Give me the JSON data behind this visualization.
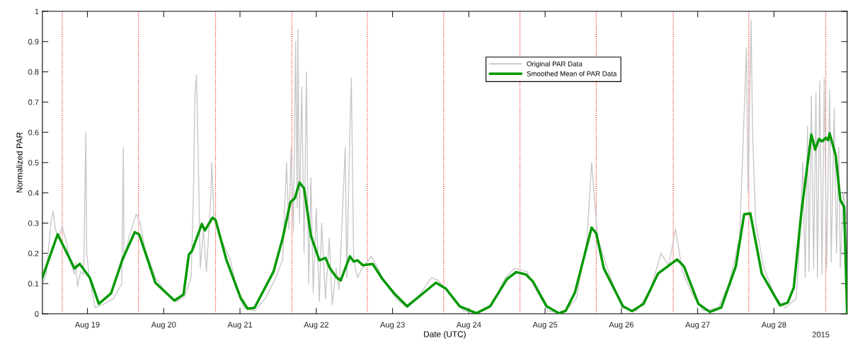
{
  "chart_data": {
    "type": "line",
    "xlabel": "Date (UTC)",
    "ylabel": "Normalized PAR",
    "annotations": [
      "2015"
    ],
    "xlim": [
      "2015-08-18T09:50",
      "2015-08-28T23:02"
    ],
    "xticks": [
      {
        "value": "2015-08-19",
        "label": "Aug 19"
      },
      {
        "value": "2015-08-20",
        "label": "Aug 20"
      },
      {
        "value": "2015-08-21",
        "label": "Aug 21"
      },
      {
        "value": "2015-08-22",
        "label": "Aug 22"
      },
      {
        "value": "2015-08-23",
        "label": "Aug 23"
      },
      {
        "value": "2015-08-24",
        "label": "Aug 24"
      },
      {
        "value": "2015-08-25",
        "label": "Aug 25"
      },
      {
        "value": "2015-08-26",
        "label": "Aug 26"
      },
      {
        "value": "2015-08-27",
        "label": "Aug 27"
      },
      {
        "value": "2015-08-28",
        "label": "Aug 28"
      }
    ],
    "ylim": [
      0,
      1
    ],
    "yticks": [
      0,
      0.1,
      0.2,
      0.3,
      0.4,
      0.5,
      0.6,
      0.7,
      0.8,
      0.9,
      1
    ],
    "grid": false,
    "legend": "top",
    "marker": "none",
    "line_style": "solid",
    "ref_lines": [
      {
        "axis": "x",
        "value": "2015-08-18T16:05",
        "color": "#ff0000",
        "line_style": "dotted"
      },
      {
        "axis": "x",
        "value": "2015-08-19T16:05",
        "color": "#ff0000",
        "line_style": "dotted"
      },
      {
        "axis": "x",
        "value": "2015-08-20T16:19",
        "color": "#ff0000",
        "line_style": "dotted"
      },
      {
        "axis": "x",
        "value": "2015-08-21T16:19",
        "color": "#ff0000",
        "line_style": "dotted"
      },
      {
        "axis": "x",
        "value": "2015-08-22T16:05",
        "color": "#ff0000",
        "line_style": "dotted"
      },
      {
        "axis": "x",
        "value": "2015-08-23T16:05",
        "color": "#ff0000",
        "line_style": "dotted"
      },
      {
        "axis": "x",
        "value": "2015-08-24T16:05",
        "color": "#ff0000",
        "line_style": "dotted"
      },
      {
        "axis": "x",
        "value": "2015-08-25T16:05",
        "color": "#ff0000",
        "line_style": "dotted"
      },
      {
        "axis": "x",
        "value": "2015-08-26T16:19",
        "color": "#ff0000",
        "line_style": "dotted"
      },
      {
        "axis": "x",
        "value": "2015-08-27T16:05",
        "color": "#ff0000",
        "line_style": "dotted"
      },
      {
        "axis": "x",
        "value": "2015-08-28T16:19",
        "color": "#ff0000",
        "line_style": "dotted"
      }
    ],
    "series": [
      {
        "name": "Original PAR Data",
        "color": "#c8c8c8",
        "x": [
          "2015-08-18T09:50",
          "2015-08-18T11:02",
          "2015-08-18T12:29",
          "2015-08-18T13:12",
          "2015-08-18T13:55",
          "2015-08-18T14:53",
          "2015-08-18T16:05",
          "2015-08-18T17:02",
          "2015-08-18T18:43",
          "2015-08-18T19:55",
          "2015-08-18T20:24",
          "2015-08-18T20:53",
          "2015-08-18T21:50",
          "2015-08-18T22:48",
          "2015-08-18T23:31",
          "2015-08-18T23:46",
          "2015-08-19T00:29",
          "2015-08-19T01:55",
          "2015-08-19T02:24",
          "2015-08-19T04:48",
          "2015-08-19T08:10",
          "2015-08-19T10:48",
          "2015-08-19T11:17",
          "2015-08-19T11:31",
          "2015-08-19T13:12",
          "2015-08-19T15:22",
          "2015-08-19T16:34",
          "2015-08-19T18:00",
          "2015-08-19T21:22",
          "2015-08-20T00:43",
          "2015-08-20T04:05",
          "2015-08-20T06:43",
          "2015-08-20T08:38",
          "2015-08-20T09:22",
          "2015-08-20T09:50",
          "2015-08-20T10:19",
          "2015-08-20T10:48",
          "2015-08-20T11:31",
          "2015-08-20T12:29",
          "2015-08-20T13:26",
          "2015-08-20T14:53",
          "2015-08-20T15:07",
          "2015-08-20T15:50",
          "2015-08-20T17:31",
          "2015-08-20T20:53",
          "2015-08-20T23:02",
          "2015-08-21T01:12",
          "2015-08-21T04:34",
          "2015-08-21T07:55",
          "2015-08-21T11:17",
          "2015-08-21T13:26",
          "2015-08-21T14:38",
          "2015-08-21T15:22",
          "2015-08-21T16:05",
          "2015-08-21T16:48",
          "2015-08-21T17:31",
          "2015-08-21T18:00",
          "2015-08-21T18:14",
          "2015-08-21T18:43",
          "2015-08-21T19:26",
          "2015-08-21T20:10",
          "2015-08-21T20:53",
          "2015-08-21T21:36",
          "2015-08-21T22:19",
          "2015-08-21T23:02",
          "2015-08-22T00:00",
          "2015-08-22T00:58",
          "2015-08-22T01:41",
          "2015-08-22T02:53",
          "2015-08-22T04:05",
          "2015-08-22T05:02",
          "2015-08-22T06:14",
          "2015-08-22T07:12",
          "2015-08-22T09:07",
          "2015-08-22T09:36",
          "2015-08-22T10:34",
          "2015-08-22T11:02",
          "2015-08-22T11:46",
          "2015-08-22T12:58",
          "2015-08-22T14:24",
          "2015-08-22T17:17",
          "2015-08-22T19:26",
          "2015-08-22T21:50",
          "2015-08-23T01:12",
          "2015-08-23T04:34",
          "2015-08-23T07:41",
          "2015-08-23T12:14",
          "2015-08-23T14:24",
          "2015-08-23T17:46",
          "2015-08-23T22:19",
          "2015-08-24T02:38",
          "2015-08-24T07:12",
          "2015-08-24T11:31",
          "2015-08-24T14:24",
          "2015-08-24T18:14",
          "2015-08-24T21:36",
          "2015-08-25T00:58",
          "2015-08-25T05:31",
          "2015-08-25T09:50",
          "2015-08-25T13:12",
          "2015-08-25T14:38",
          "2015-08-25T15:22",
          "2015-08-25T16:34",
          "2015-08-25T19:55",
          "2015-08-26T00:14",
          "2015-08-26T04:48",
          "2015-08-26T09:07",
          "2015-08-26T12:29",
          "2015-08-26T14:53",
          "2015-08-26T17:02",
          "2015-08-26T19:12",
          "2015-08-26T22:34",
          "2015-08-27T01:55",
          "2015-08-27T06:29",
          "2015-08-27T09:50",
          "2015-08-27T13:12",
          "2015-08-27T15:22",
          "2015-08-27T15:50",
          "2015-08-27T16:48",
          "2015-08-27T17:17",
          "2015-08-27T18:14",
          "2015-08-27T20:53",
          "2015-08-28T00:14",
          "2015-08-28T03:36",
          "2015-08-28T06:58",
          "2015-08-28T07:55",
          "2015-08-28T09:07",
          "2015-08-28T09:50",
          "2015-08-28T10:34",
          "2015-08-28T11:02",
          "2015-08-28T11:46",
          "2015-08-28T12:29",
          "2015-08-28T13:12",
          "2015-08-28T13:41",
          "2015-08-28T14:24",
          "2015-08-28T15:07",
          "2015-08-28T15:50",
          "2015-08-28T16:34",
          "2015-08-28T17:31",
          "2015-08-28T18:00",
          "2015-08-28T18:58",
          "2015-08-28T19:41",
          "2015-08-28T20:24",
          "2015-08-28T20:53",
          "2015-08-28T21:50",
          "2015-08-28T23:02"
        ],
        "values": [
          0.1,
          0.13,
          0.3,
          0.34,
          0.28,
          0.25,
          0.29,
          0.25,
          0.17,
          0.13,
          0.17,
          0.09,
          0.14,
          0.13,
          0.6,
          0.2,
          0.13,
          0.05,
          0.02,
          0.03,
          0.05,
          0.1,
          0.55,
          0.18,
          0.26,
          0.33,
          0.3,
          0.22,
          0.12,
          0.07,
          0.04,
          0.06,
          0.12,
          0.4,
          0.73,
          0.79,
          0.55,
          0.15,
          0.28,
          0.14,
          0.4,
          0.5,
          0.32,
          0.26,
          0.18,
          0.08,
          0.02,
          0.01,
          0.05,
          0.12,
          0.18,
          0.5,
          0.28,
          0.55,
          0.27,
          0.9,
          0.35,
          0.94,
          0.3,
          0.75,
          0.2,
          0.8,
          0.1,
          0.45,
          0.07,
          0.35,
          0.04,
          0.3,
          0.05,
          0.25,
          0.03,
          0.15,
          0.08,
          0.55,
          0.12,
          0.6,
          0.78,
          0.18,
          0.12,
          0.15,
          0.19,
          0.15,
          0.1,
          0.05,
          0.02,
          0.05,
          0.12,
          0.11,
          0.07,
          0.01,
          0.0,
          0.03,
          0.12,
          0.15,
          0.14,
          0.07,
          0.01,
          0.0,
          0.05,
          0.25,
          0.5,
          0.4,
          0.25,
          0.14,
          0.02,
          0.01,
          0.08,
          0.2,
          0.16,
          0.28,
          0.14,
          0.06,
          0.01,
          0.02,
          0.1,
          0.25,
          0.88,
          0.4,
          0.97,
          0.6,
          0.3,
          0.15,
          0.06,
          0.02,
          0.05,
          0.2,
          0.5,
          0.12,
          0.62,
          0.14,
          0.72,
          0.15,
          0.73,
          0.12,
          0.77,
          0.13,
          0.78,
          0.15,
          0.74,
          0.17,
          0.68,
          0.2,
          0.55,
          0.15,
          0.4,
          0.3
        ]
      },
      {
        "name": "Smoothed Mean of PAR Data",
        "color": "#009900",
        "x": [
          "2015-08-18T09:50",
          "2015-08-18T14:38",
          "2015-08-18T19:55",
          "2015-08-18T21:36",
          "2015-08-19T00:43",
          "2015-08-19T03:36",
          "2015-08-19T07:26",
          "2015-08-19T11:02",
          "2015-08-19T14:53",
          "2015-08-19T16:19",
          "2015-08-19T21:22",
          "2015-08-20T03:22",
          "2015-08-20T06:14",
          "2015-08-20T07:55",
          "2015-08-20T08:53",
          "2015-08-20T12:00",
          "2015-08-20T12:58",
          "2015-08-20T15:22",
          "2015-08-20T16:19",
          "2015-08-20T19:41",
          "2015-08-21T00:14",
          "2015-08-21T02:24",
          "2015-08-21T04:34",
          "2015-08-21T10:34",
          "2015-08-21T13:26",
          "2015-08-21T15:50",
          "2015-08-21T17:17",
          "2015-08-21T18:43",
          "2015-08-21T20:10",
          "2015-08-21T22:19",
          "2015-08-22T00:58",
          "2015-08-22T02:53",
          "2015-08-22T04:19",
          "2015-08-22T06:14",
          "2015-08-22T07:41",
          "2015-08-22T10:34",
          "2015-08-22T11:46",
          "2015-08-22T12:58",
          "2015-08-22T14:38",
          "2015-08-22T17:46",
          "2015-08-22T20:38",
          "2015-08-23T00:29",
          "2015-08-23T04:34",
          "2015-08-23T10:05",
          "2015-08-23T13:41",
          "2015-08-23T16:48",
          "2015-08-23T21:07",
          "2015-08-24T02:24",
          "2015-08-24T06:43",
          "2015-08-24T12:00",
          "2015-08-24T14:53",
          "2015-08-24T18:00",
          "2015-08-24T20:10",
          "2015-08-25T00:29",
          "2015-08-25T04:19",
          "2015-08-25T06:29",
          "2015-08-25T09:22",
          "2015-08-25T14:38",
          "2015-08-25T16:05",
          "2015-08-25T18:29",
          "2015-08-26T00:29",
          "2015-08-26T03:22",
          "2015-08-26T06:58",
          "2015-08-26T11:31",
          "2015-08-26T17:31",
          "2015-08-26T19:41",
          "2015-08-27T00:14",
          "2015-08-27T03:50",
          "2015-08-27T07:26",
          "2015-08-27T12:00",
          "2015-08-27T14:38",
          "2015-08-27T16:34",
          "2015-08-27T20:10",
          "2015-08-28T01:55",
          "2015-08-28T04:19",
          "2015-08-28T06:14",
          "2015-08-28T08:38",
          "2015-08-28T11:46",
          "2015-08-28T12:58",
          "2015-08-28T14:10",
          "2015-08-28T15:07",
          "2015-08-28T16:19",
          "2015-08-28T17:02",
          "2015-08-28T17:31",
          "2015-08-28T19:26",
          "2015-08-28T20:53",
          "2015-08-28T22:05",
          "2015-08-28T23:02"
        ],
        "values": [
          0.12,
          0.263,
          0.15,
          0.165,
          0.12,
          0.033,
          0.068,
          0.18,
          0.27,
          0.262,
          0.103,
          0.044,
          0.064,
          0.196,
          0.208,
          0.297,
          0.276,
          0.318,
          0.31,
          0.18,
          0.052,
          0.017,
          0.02,
          0.14,
          0.25,
          0.368,
          0.383,
          0.434,
          0.415,
          0.258,
          0.177,
          0.185,
          0.15,
          0.122,
          0.11,
          0.19,
          0.173,
          0.177,
          0.161,
          0.165,
          0.118,
          0.068,
          0.025,
          0.072,
          0.103,
          0.083,
          0.025,
          0.002,
          0.025,
          0.115,
          0.138,
          0.13,
          0.107,
          0.025,
          0.002,
          0.01,
          0.07,
          0.285,
          0.266,
          0.15,
          0.025,
          0.009,
          0.033,
          0.133,
          0.18,
          0.157,
          0.033,
          0.006,
          0.021,
          0.157,
          0.329,
          0.332,
          0.133,
          0.028,
          0.037,
          0.087,
          0.336,
          0.593,
          0.543,
          0.578,
          0.57,
          0.582,
          0.574,
          0.597,
          0.523,
          0.376,
          0.353,
          0.002
        ]
      }
    ]
  }
}
